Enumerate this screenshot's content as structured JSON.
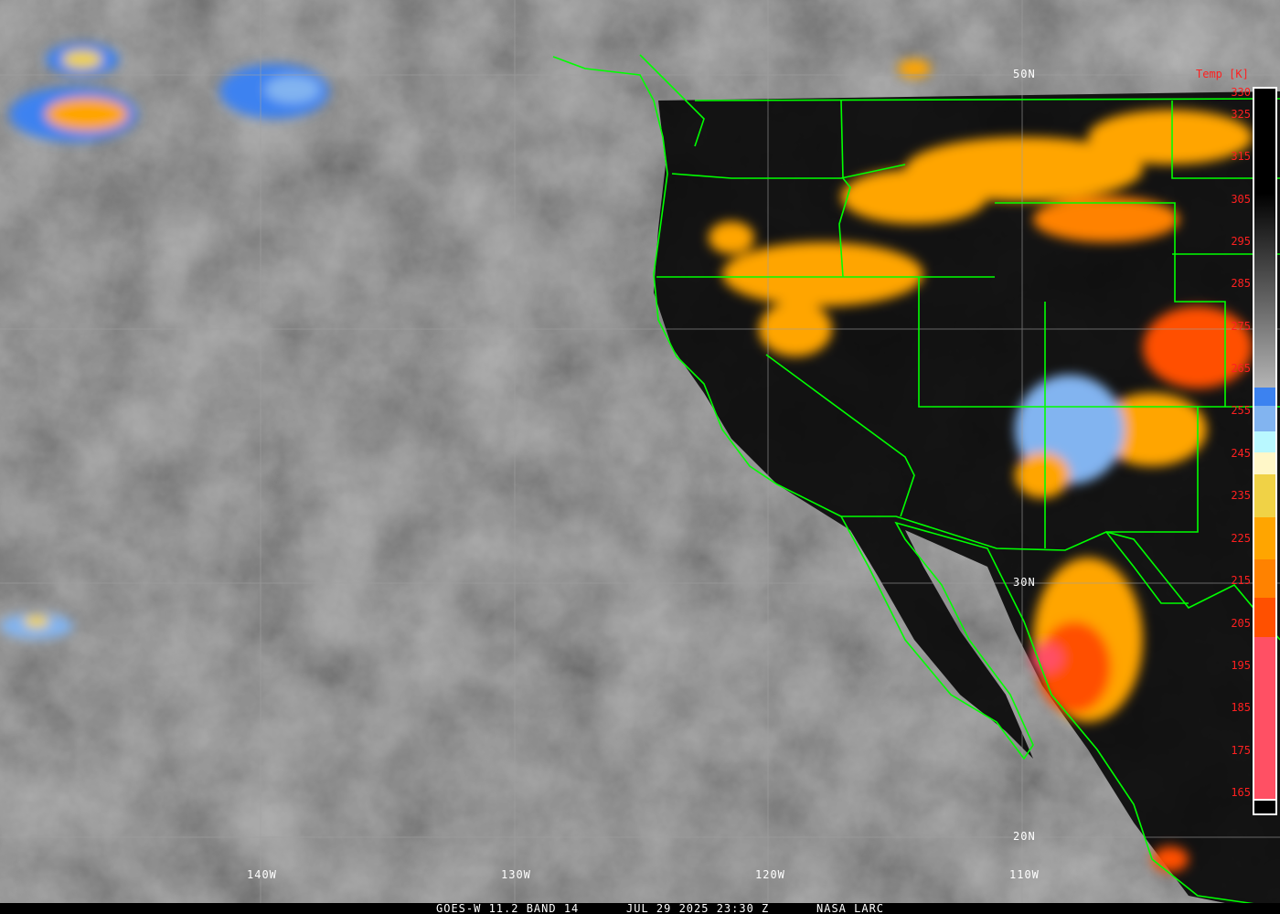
{
  "caption": {
    "satellite": "GOES-W 11.2 BAND 14",
    "datetime": "JUL 29 2025 23:30 Z",
    "credit": "NASA LARC"
  },
  "grid": {
    "lat_labels": [
      "50N",
      "30N",
      "20N"
    ],
    "lon_labels": [
      "140W",
      "130W",
      "120W",
      "110W"
    ]
  },
  "colorbar": {
    "title": "Temp [K]",
    "ticks": [
      "330",
      "325",
      "315",
      "305",
      "295",
      "285",
      "275",
      "265",
      "255",
      "245",
      "235",
      "225",
      "215",
      "205",
      "195",
      "185",
      "175",
      "165"
    ],
    "colors": {
      "warm_gray_top": "#000000",
      "warm_gray_bottom": "#b4b4b4",
      "blue": "#3c82f0",
      "light_blue": "#82b4f0",
      "pale_cyan": "#b9f8ff",
      "cream": "#fff7c8",
      "yellow": "#f0d246",
      "orange": "#ffa500",
      "dark_orange": "#ff8200",
      "red_orange": "#ff5000",
      "pink": "#ff5064",
      "tick_color": "#ff2020"
    }
  },
  "overlay_colors": {
    "boundaries": "#00ff00",
    "grid": "#a0a0a0"
  }
}
